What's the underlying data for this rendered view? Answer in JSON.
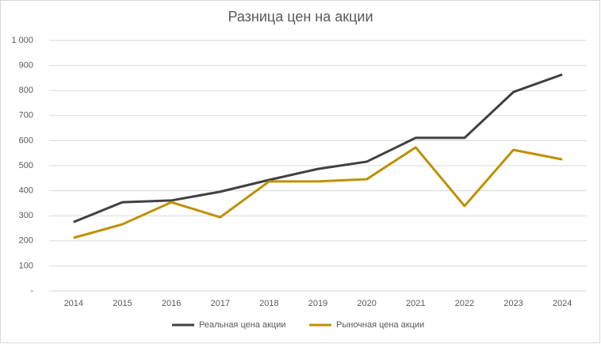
{
  "chart_data": {
    "type": "line",
    "title": "Разница цен на акции",
    "categories": [
      "2014",
      "2015",
      "2016",
      "2017",
      "2018",
      "2019",
      "2020",
      "2021",
      "2022",
      "2023",
      "2024"
    ],
    "series": [
      {
        "name": "Реальная цена акции",
        "color": "#404040",
        "values": [
          275,
          354,
          361,
          396,
          443,
          487,
          516,
          611,
          611,
          794,
          864
        ]
      },
      {
        "name": "Рыночная цена акции",
        "color": "#bf9000",
        "values": [
          212,
          266,
          354,
          294,
          437,
          437,
          446,
          573,
          339,
          563,
          525
        ]
      }
    ],
    "ylim": [
      0,
      1000
    ],
    "yticks": [
      {
        "value": 0,
        "label": "-"
      },
      100,
      200,
      300,
      400,
      500,
      600,
      700,
      800,
      900,
      {
        "value": 1000,
        "label": "1 000"
      }
    ],
    "grid": true,
    "legend": "bottom"
  }
}
